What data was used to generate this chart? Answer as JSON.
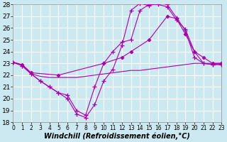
{
  "background_color": "#cce8f0",
  "grid_color": "#ffffff",
  "line_color": "#aa00aa",
  "x_min": 0,
  "x_max": 23,
  "y_min": 18,
  "y_max": 28,
  "xlabel": "Windchill (Refroidissement éolien,°C)",
  "xlabel_fontsize": 7.0,
  "ytick_fontsize": 6.5,
  "xtick_fontsize": 5.5,
  "series": [
    {
      "x": [
        0,
        1,
        2,
        3,
        4,
        5,
        6,
        7,
        8,
        9,
        10,
        11,
        12,
        13,
        14,
        15,
        16,
        17,
        18,
        19,
        20,
        21,
        22,
        23
      ],
      "y": [
        23.1,
        22.8,
        22.1,
        21.5,
        21.0,
        20.5,
        20.0,
        18.7,
        18.4,
        19.5,
        21.5,
        22.5,
        24.5,
        27.5,
        28.1,
        27.9,
        28.1,
        28.0,
        26.9,
        25.8,
        23.5,
        23.0,
        22.9,
        22.9
      ],
      "marker": "+"
    },
    {
      "x": [
        0,
        1,
        2,
        3,
        4,
        5,
        6,
        7,
        8,
        9,
        10,
        11,
        12,
        13,
        14,
        15,
        16,
        17,
        18,
        19,
        20,
        21,
        22,
        23
      ],
      "y": [
        23.1,
        22.8,
        22.1,
        21.5,
        21.0,
        20.5,
        20.3,
        19.0,
        18.6,
        21.0,
        23.0,
        24.0,
        24.8,
        25.0,
        27.5,
        28.0,
        28.0,
        27.8,
        26.7,
        25.9,
        24.0,
        23.0,
        22.9,
        22.9
      ],
      "marker": "+"
    },
    {
      "x": [
        0,
        1,
        2,
        5,
        10,
        12,
        13,
        15,
        17,
        18,
        19,
        20,
        21,
        22,
        23
      ],
      "y": [
        23.1,
        22.9,
        22.2,
        22.0,
        23.0,
        23.5,
        24.0,
        25.0,
        27.0,
        26.8,
        25.5,
        24.0,
        23.5,
        23.0,
        23.0
      ],
      "marker": "D"
    },
    {
      "x": [
        0,
        1,
        2,
        3,
        4,
        5,
        6,
        7,
        8,
        9,
        10,
        11,
        12,
        13,
        14,
        15,
        16,
        17,
        18,
        19,
        20,
        21,
        22,
        23
      ],
      "y": [
        23.1,
        22.8,
        22.1,
        21.9,
        21.8,
        21.8,
        21.8,
        21.8,
        21.9,
        22.0,
        22.1,
        22.2,
        22.3,
        22.4,
        22.4,
        22.5,
        22.6,
        22.7,
        22.8,
        22.9,
        23.0,
        23.0,
        23.0,
        23.0
      ],
      "marker": null
    }
  ]
}
